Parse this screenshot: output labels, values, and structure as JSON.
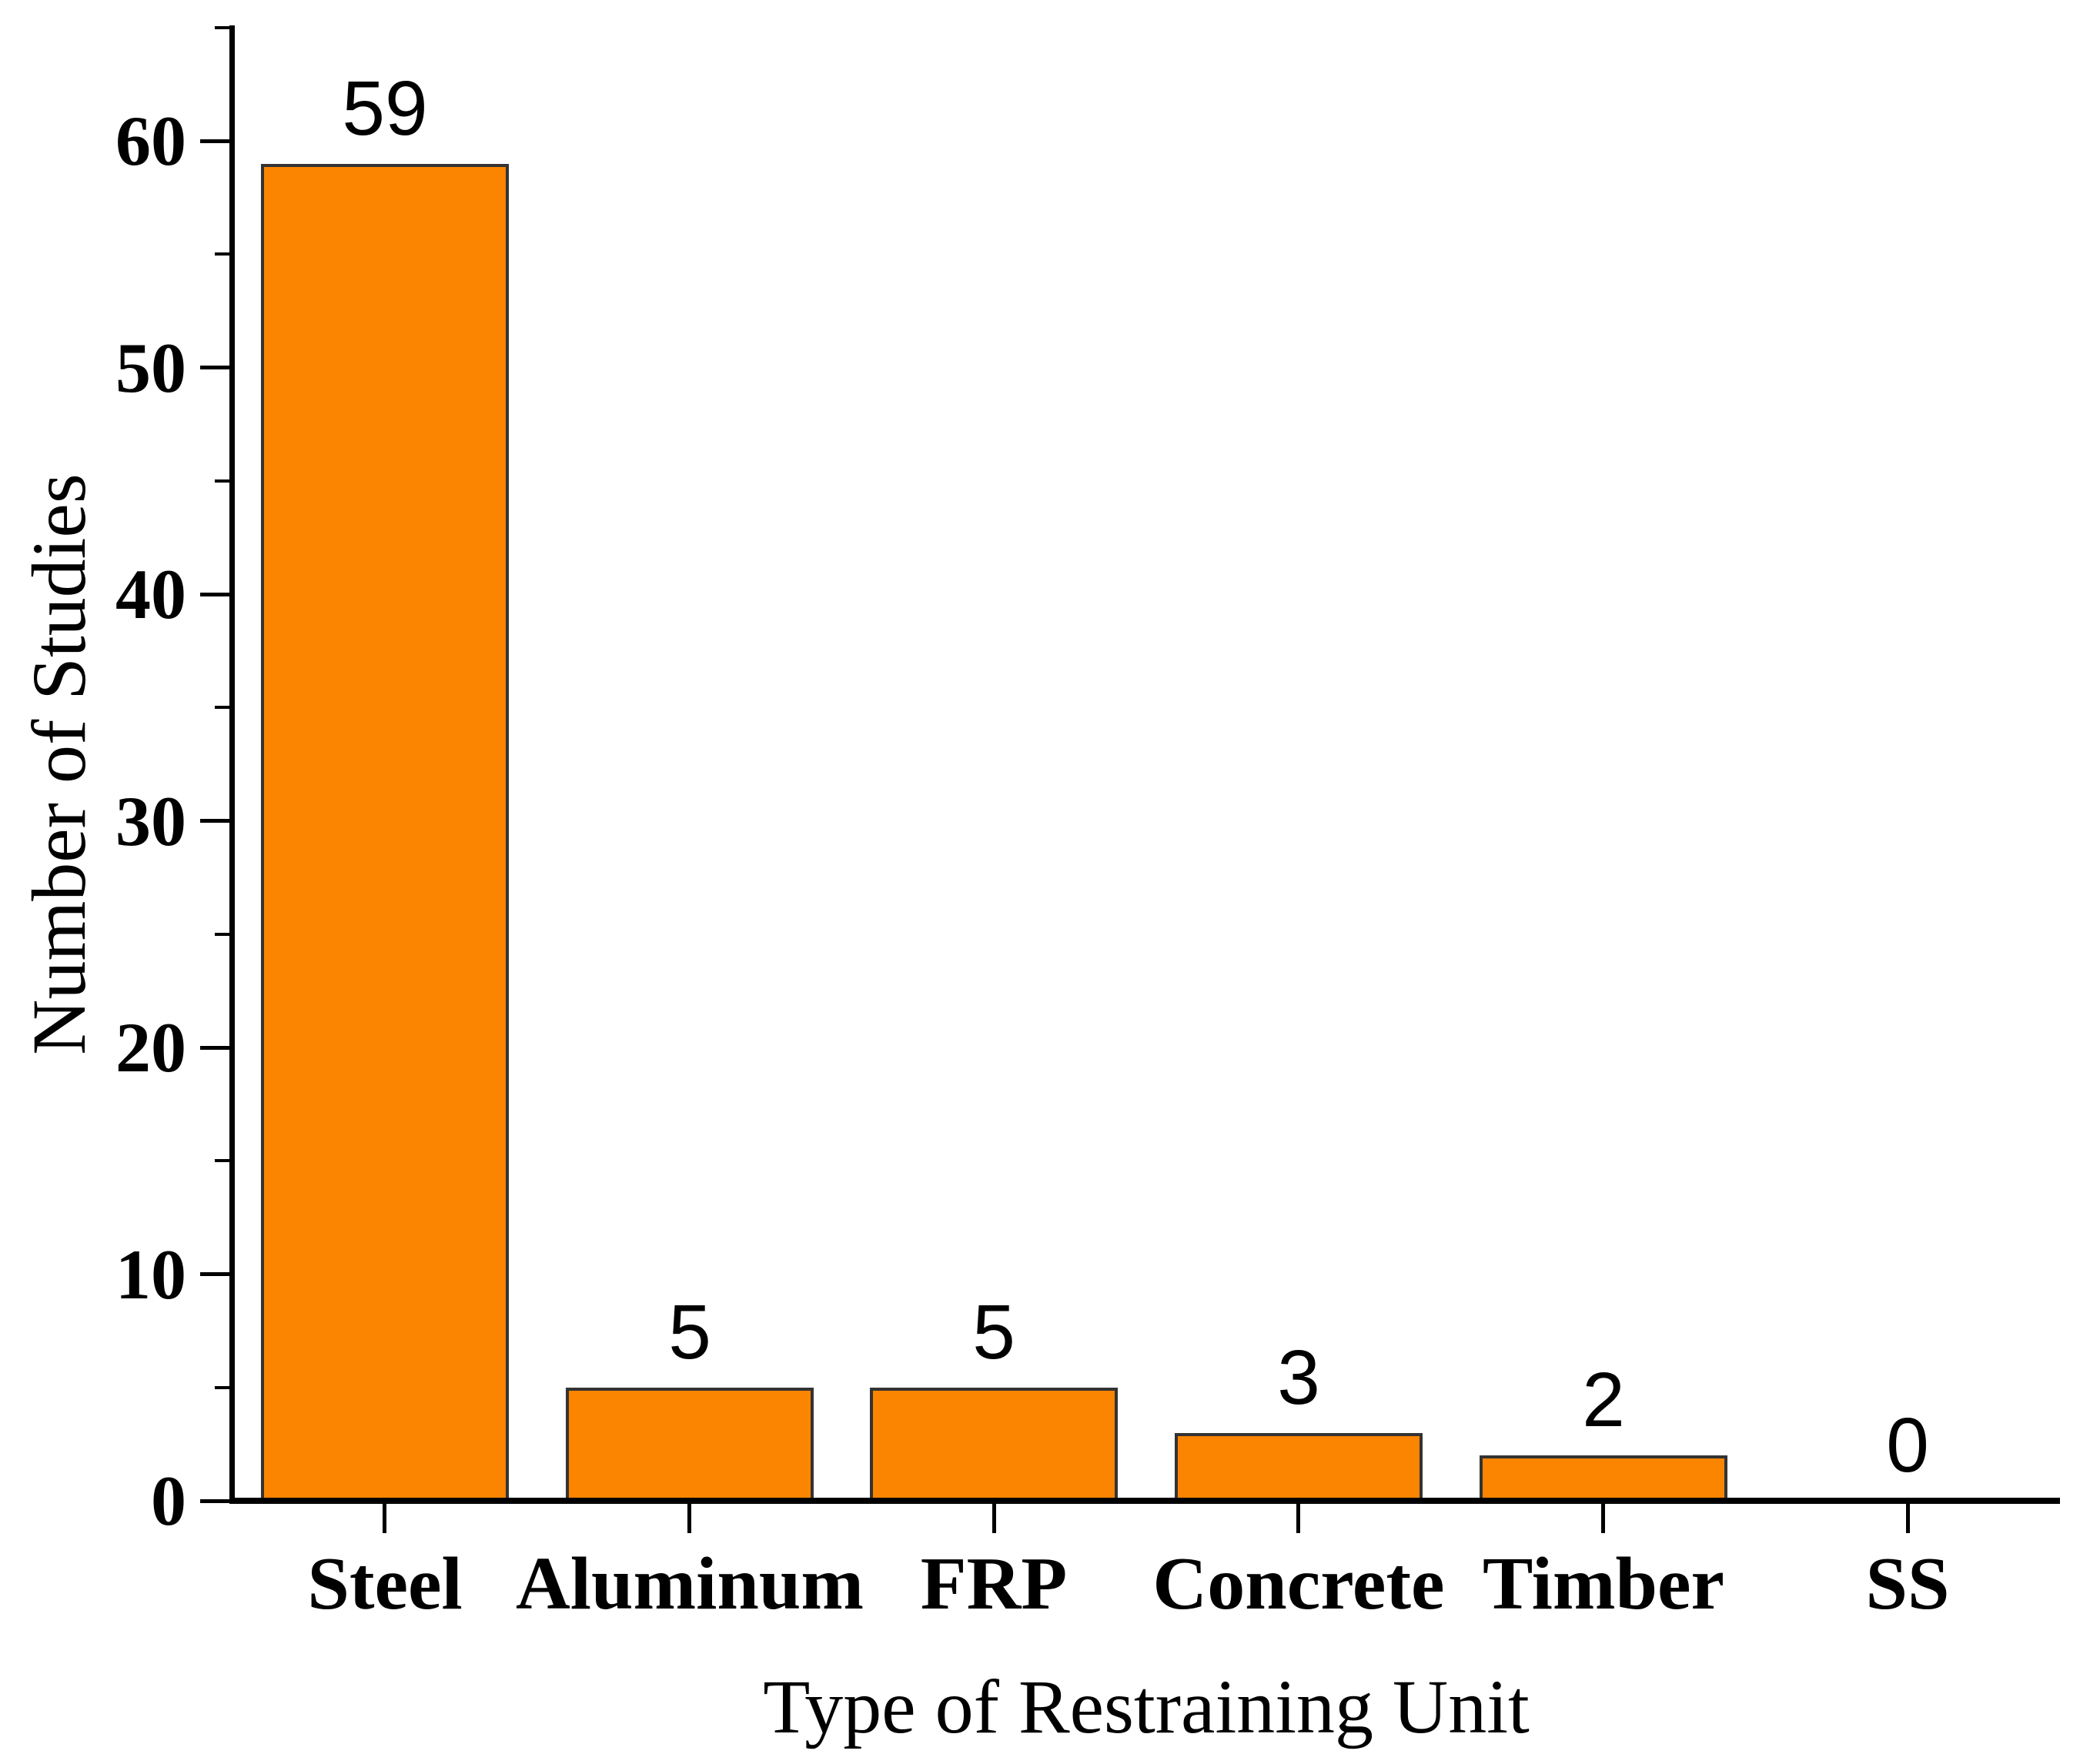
{
  "chart_data": {
    "type": "bar",
    "title": "",
    "xlabel": "Type of Restraining Unit",
    "ylabel": "Number of Studies",
    "categories": [
      "Steel",
      "Aluminum",
      "FRP",
      "Concrete",
      "Timber",
      "SS"
    ],
    "values": [
      59,
      5,
      5,
      3,
      2,
      0
    ],
    "data_labels": [
      "59",
      "5",
      "5",
      "3",
      "2",
      "0"
    ],
    "ylim": [
      0,
      65
    ],
    "y_major_ticks": [
      0,
      10,
      20,
      30,
      40,
      50,
      60
    ],
    "y_tick_labels": [
      "0",
      "10",
      "20",
      "30",
      "40",
      "50",
      "60"
    ],
    "y_minor_ticks": [
      5,
      15,
      25,
      35,
      45,
      55,
      65
    ],
    "grid": false,
    "legend_visible": false,
    "bar_fill_color": "#FB8500",
    "bar_edge_color": "#333333",
    "axis_color": "#000000",
    "text_color": "#000000",
    "background_color": "#ffffff"
  }
}
